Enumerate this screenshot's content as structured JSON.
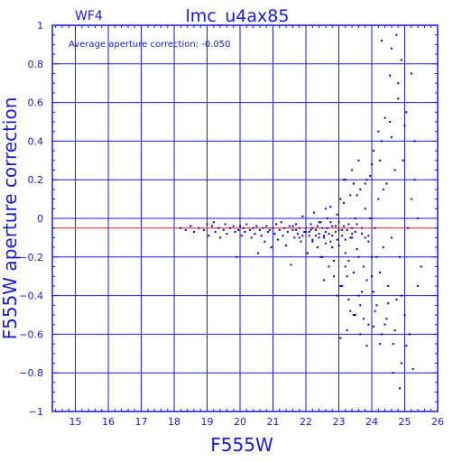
{
  "chart_data": {
    "type": "scatter",
    "chip": "WF4",
    "title": "lmc_u4ax85",
    "annotation": "Average aperture correction:  -0.050",
    "xlabel": "F555W",
    "ylabel": "F555W aperture correction",
    "xlim": [
      14.3,
      26
    ],
    "ylim": [
      -1,
      1
    ],
    "x_ticks": [
      15,
      16,
      17,
      18,
      19,
      20,
      21,
      22,
      23,
      24,
      25,
      26
    ],
    "y_ticks": [
      1,
      0.8,
      0.6,
      0.4,
      0.2,
      0,
      -0.2,
      -0.4,
      -0.6,
      -0.8,
      -1
    ],
    "y_tick_labels": [
      "1",
      "0.8",
      "0.6",
      "0.4",
      "0.2",
      "0",
      "−0.2",
      "−0.4",
      "−0.6",
      "−0.8",
      "−1"
    ],
    "grid": true,
    "reference_line": -0.05,
    "colors": {
      "axes": "#1a1ad6",
      "points": "#0000cc",
      "reference": "#d42020"
    },
    "points": [
      [
        18.2,
        -0.05
      ],
      [
        18.35,
        -0.06
      ],
      [
        18.5,
        -0.04
      ],
      [
        18.6,
        -0.07
      ],
      [
        18.75,
        -0.05
      ],
      [
        18.9,
        -0.06
      ],
      [
        19.0,
        -0.03
      ],
      [
        19.05,
        -0.09
      ],
      [
        19.15,
        -0.04
      ],
      [
        19.2,
        -0.02
      ],
      [
        19.25,
        -0.07
      ],
      [
        19.35,
        -0.05
      ],
      [
        19.4,
        -0.1
      ],
      [
        19.5,
        -0.06
      ],
      [
        19.55,
        -0.03
      ],
      [
        19.6,
        -0.08
      ],
      [
        19.7,
        -0.05
      ],
      [
        19.8,
        -0.04
      ],
      [
        19.85,
        -0.07
      ],
      [
        19.9,
        -0.2
      ],
      [
        19.95,
        -0.06
      ],
      [
        20.0,
        -0.04
      ],
      [
        20.05,
        -0.09
      ],
      [
        20.1,
        -0.05
      ],
      [
        20.15,
        -0.07
      ],
      [
        20.2,
        -0.03
      ],
      [
        20.3,
        -0.06
      ],
      [
        20.35,
        -0.1
      ],
      [
        20.4,
        -0.05
      ],
      [
        20.45,
        -0.08
      ],
      [
        20.5,
        -0.04
      ],
      [
        20.55,
        -0.18
      ],
      [
        20.6,
        -0.06
      ],
      [
        20.65,
        -0.09
      ],
      [
        20.7,
        -0.05
      ],
      [
        20.75,
        -0.12
      ],
      [
        20.8,
        -0.04
      ],
      [
        20.85,
        -0.07
      ],
      [
        20.9,
        -0.06
      ],
      [
        20.95,
        -0.15
      ],
      [
        21.0,
        -0.05
      ],
      [
        21.05,
        -0.08
      ],
      [
        21.1,
        -0.03
      ],
      [
        21.15,
        -0.11
      ],
      [
        21.2,
        -0.06
      ],
      [
        21.25,
        -0.02
      ],
      [
        21.3,
        -0.09
      ],
      [
        21.35,
        -0.05
      ],
      [
        21.4,
        -0.14
      ],
      [
        21.45,
        -0.07
      ],
      [
        21.5,
        -0.04
      ],
      [
        21.55,
        -0.24
      ],
      [
        21.6,
        -0.06
      ],
      [
        21.65,
        -0.1
      ],
      [
        21.7,
        -0.03
      ],
      [
        21.75,
        -0.08
      ],
      [
        21.8,
        -0.05
      ],
      [
        21.85,
        -0.12
      ],
      [
        21.9,
        0.01
      ],
      [
        21.95,
        -0.07
      ],
      [
        22.0,
        -0.05
      ],
      [
        22.05,
        -0.18
      ],
      [
        22.1,
        -0.09
      ],
      [
        22.15,
        -0.03
      ],
      [
        22.2,
        -0.11
      ],
      [
        22.25,
        0.03
      ],
      [
        22.3,
        -0.06
      ],
      [
        22.35,
        -0.15
      ],
      [
        22.4,
        -0.08
      ],
      [
        22.45,
        -0.02
      ],
      [
        22.5,
        -0.2
      ],
      [
        22.55,
        -0.1
      ],
      [
        22.6,
        0.05
      ],
      [
        22.65,
        -0.05
      ],
      [
        22.7,
        -0.25
      ],
      [
        22.75,
        -0.12
      ],
      [
        22.8,
        -0.04
      ],
      [
        22.85,
        -0.3
      ],
      [
        22.9,
        -0.07
      ],
      [
        22.95,
        0.02
      ],
      [
        23.0,
        -0.14
      ],
      [
        23.05,
        -0.35
      ],
      [
        23.1,
        -0.09
      ],
      [
        23.15,
        0.08
      ],
      [
        23.2,
        -0.18
      ],
      [
        23.25,
        -0.06
      ],
      [
        23.3,
        -0.22
      ],
      [
        23.35,
        0.12
      ],
      [
        23.4,
        -0.1
      ],
      [
        23.45,
        -0.28
      ],
      [
        23.5,
        0.0
      ],
      [
        23.55,
        -0.16
      ],
      [
        23.6,
        -0.4
      ],
      [
        23.65,
        0.15
      ],
      [
        23.7,
        -0.08
      ],
      [
        23.75,
        -0.25
      ],
      [
        23.8,
        0.05
      ],
      [
        23.85,
        -0.32
      ],
      [
        23.9,
        -0.12
      ],
      [
        23.95,
        0.22
      ],
      [
        24.0,
        -0.2
      ],
      [
        24.05,
        0.35
      ],
      [
        24.1,
        -0.05
      ],
      [
        24.15,
        -0.45
      ],
      [
        24.2,
        0.1
      ],
      [
        24.25,
        -0.28
      ],
      [
        24.3,
        0.4
      ],
      [
        24.35,
        -0.15
      ],
      [
        24.4,
        -0.55
      ],
      [
        24.45,
        0.18
      ],
      [
        24.5,
        -0.35
      ],
      [
        24.55,
        0.5
      ],
      [
        24.6,
        -0.1
      ],
      [
        24.65,
        -0.65
      ],
      [
        24.7,
        0.25
      ],
      [
        24.75,
        -0.42
      ],
      [
        24.8,
        0.7
      ],
      [
        24.85,
        -0.2
      ],
      [
        24.9,
        -0.75
      ],
      [
        24.95,
        0.3
      ],
      [
        25.0,
        -0.5
      ],
      [
        25.05,
        0.55
      ],
      [
        25.1,
        -0.05
      ],
      [
        25.15,
        -0.6
      ],
      [
        25.2,
        0.1
      ],
      [
        25.3,
        0.4
      ],
      [
        25.4,
        -0.35
      ],
      [
        25.5,
        -0.25
      ],
      [
        22.1,
        -0.07
      ],
      [
        22.3,
        -0.09
      ],
      [
        22.5,
        -0.05
      ],
      [
        22.7,
        -0.08
      ],
      [
        22.9,
        -0.04
      ],
      [
        23.1,
        -0.06
      ],
      [
        23.3,
        -0.03
      ],
      [
        23.5,
        -0.07
      ],
      [
        23.7,
        -0.05
      ],
      [
        23.9,
        -0.09
      ],
      [
        22.2,
        -0.12
      ],
      [
        22.4,
        -0.02
      ],
      [
        22.6,
        -0.13
      ],
      [
        22.8,
        -0.15
      ],
      [
        23.0,
        -0.02
      ],
      [
        23.2,
        -0.25
      ],
      [
        23.4,
        -0.05
      ],
      [
        23.6,
        -0.2
      ],
      [
        23.8,
        -0.1
      ],
      [
        24.0,
        -0.3
      ],
      [
        22.45,
        -0.2
      ],
      [
        22.65,
        0.0
      ],
      [
        22.85,
        -0.22
      ],
      [
        23.05,
        0.1
      ],
      [
        23.25,
        -0.3
      ],
      [
        23.45,
        0.18
      ],
      [
        23.65,
        -0.45
      ],
      [
        23.85,
        0.2
      ],
      [
        24.05,
        -0.38
      ],
      [
        24.25,
        0.3
      ],
      [
        22.55,
        -0.32
      ],
      [
        22.75,
        0.06
      ],
      [
        22.95,
        -0.4
      ],
      [
        23.15,
        0.2
      ],
      [
        23.35,
        -0.48
      ],
      [
        23.55,
        0.12
      ],
      [
        23.75,
        -0.52
      ],
      [
        23.95,
        0.0
      ],
      [
        24.15,
        -0.2
      ],
      [
        24.35,
        0.15
      ],
      [
        21.6,
        -0.04
      ],
      [
        21.8,
        -0.1
      ],
      [
        22.0,
        -0.07
      ],
      [
        22.2,
        -0.05
      ],
      [
        22.4,
        -0.1
      ],
      [
        22.6,
        -0.07
      ],
      [
        22.8,
        -0.09
      ],
      [
        23.0,
        -0.06
      ],
      [
        23.2,
        -0.11
      ],
      [
        23.4,
        -0.08
      ],
      [
        21.7,
        -0.06
      ],
      [
        21.9,
        -0.09
      ],
      [
        22.15,
        -0.06
      ],
      [
        22.35,
        -0.04
      ],
      [
        22.55,
        -0.09
      ],
      [
        22.75,
        -0.02
      ],
      [
        22.95,
        -0.11
      ],
      [
        23.15,
        -0.04
      ],
      [
        23.35,
        -0.1
      ],
      [
        23.55,
        -0.03
      ],
      [
        23.1,
        -0.35
      ],
      [
        23.3,
        -0.42
      ],
      [
        23.5,
        -0.5
      ],
      [
        23.7,
        -0.38
      ],
      [
        23.9,
        -0.55
      ],
      [
        24.1,
        -0.48
      ],
      [
        24.3,
        -0.6
      ],
      [
        24.5,
        -0.44
      ],
      [
        24.7,
        -0.58
      ],
      [
        24.9,
        -0.4
      ],
      [
        23.2,
        0.2
      ],
      [
        23.4,
        0.25
      ],
      [
        23.6,
        0.3
      ],
      [
        23.8,
        0.18
      ],
      [
        24.0,
        0.28
      ],
      [
        24.2,
        0.45
      ],
      [
        24.4,
        0.52
      ],
      [
        24.6,
        0.42
      ],
      [
        24.8,
        0.62
      ],
      [
        25.0,
        0.48
      ],
      [
        23.05,
        -0.62
      ],
      [
        23.25,
        -0.58
      ],
      [
        23.45,
        -0.5
      ],
      [
        23.65,
        -0.6
      ],
      [
        23.85,
        -0.66
      ],
      [
        24.05,
        -0.56
      ],
      [
        24.25,
        -0.65
      ],
      [
        24.45,
        -0.52
      ],
      [
        24.65,
        -0.8
      ],
      [
        24.85,
        -0.88
      ],
      [
        25.05,
        -0.66
      ],
      [
        25.25,
        -0.78
      ],
      [
        24.6,
        0.88
      ],
      [
        24.75,
        0.95
      ],
      [
        24.9,
        0.82
      ],
      [
        24.3,
        0.92
      ],
      [
        24.55,
        0.74
      ],
      [
        25.2,
        0.75
      ],
      [
        25.3,
        0.2
      ],
      [
        25.4,
        0.0
      ]
    ]
  }
}
